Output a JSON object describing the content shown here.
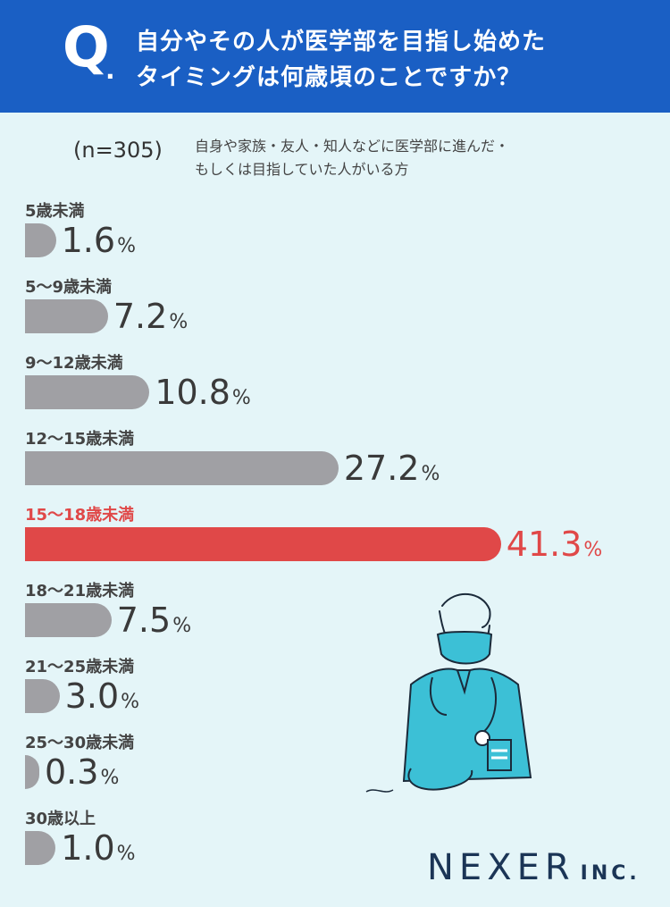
{
  "header": {
    "q_mark": "Q",
    "q_dot": ".",
    "question_line1": "自分やその人が医学部を目指し始めた",
    "question_line2": "タイミングは何歳頃のことですか？"
  },
  "sample": {
    "n_label": "(n=305)",
    "note_line1": "自身や家族・友人・知人などに医学部に進んだ・",
    "note_line2": "もしくは目指していた人がいる方"
  },
  "colors": {
    "header": "#1a5fc4",
    "background": "#e4f5f8",
    "bar": "#a0a0a4",
    "highlight": "#e04848"
  },
  "chart_data": {
    "type": "bar",
    "orientation": "horizontal",
    "unit": "%",
    "categories": [
      "5歳未満",
      "5〜9歳未満",
      "9〜12歳未満",
      "12〜15歳未満",
      "15〜18歳未満",
      "18〜21歳未満",
      "21〜25歳未満",
      "25〜30歳未満",
      "30歳以上"
    ],
    "values": [
      1.6,
      7.2,
      10.8,
      27.2,
      41.3,
      7.5,
      3.0,
      0.3,
      1.0
    ],
    "value_labels": [
      "1.6",
      "7.2",
      "10.8",
      "27.2",
      "41.3",
      "7.5",
      "3.0",
      "0.3",
      "1.0"
    ],
    "highlight_index": 4
  },
  "logo": {
    "name": "NEXER",
    "suffix": "INC."
  },
  "illustration": {
    "icon": "doctor-with-mask-icon"
  }
}
